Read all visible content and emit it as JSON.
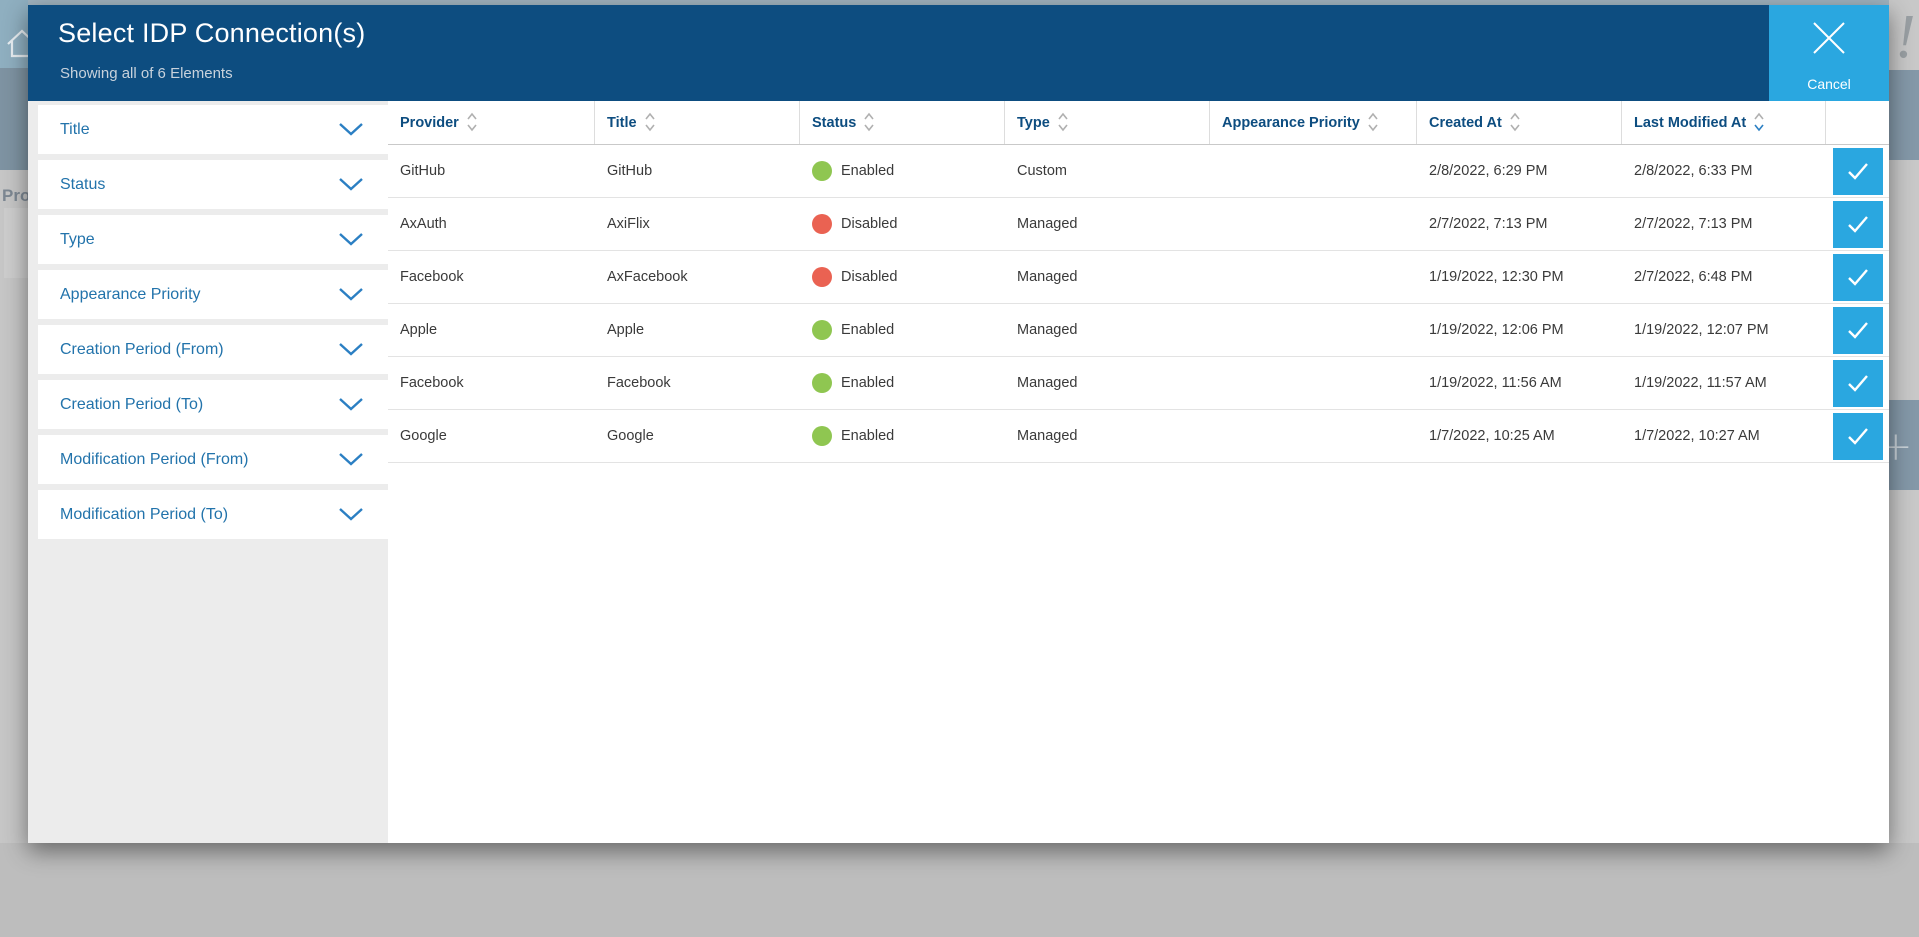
{
  "colors": {
    "header_blue": "#0d4d80",
    "accent_blue": "#2aa7e0",
    "link_blue": "#2273ab",
    "status_enabled": "#8fc651",
    "status_disabled": "#ea6252"
  },
  "modal": {
    "title": "Select IDP Connection(s)",
    "subtitle": "Showing all of 6 Elements",
    "cancel_label": "Cancel"
  },
  "filters": {
    "items": [
      {
        "slug": "title",
        "label": "Title"
      },
      {
        "slug": "status",
        "label": "Status"
      },
      {
        "slug": "type",
        "label": "Type"
      },
      {
        "slug": "appearance-priority",
        "label": "Appearance Priority"
      },
      {
        "slug": "creation-period-from",
        "label": "Creation Period (From)"
      },
      {
        "slug": "creation-period-to",
        "label": "Creation Period (To)"
      },
      {
        "slug": "modification-period-from",
        "label": "Modification Period (From)"
      },
      {
        "slug": "modification-period-to",
        "label": "Modification Period (To)"
      }
    ]
  },
  "table": {
    "columns": [
      {
        "key": "provider",
        "label": "Provider",
        "sortable": true
      },
      {
        "key": "title",
        "label": "Title",
        "sortable": true
      },
      {
        "key": "status",
        "label": "Status",
        "sortable": true
      },
      {
        "key": "type",
        "label": "Type",
        "sortable": true
      },
      {
        "key": "appearance_priority",
        "label": "Appearance Priority",
        "sortable": true
      },
      {
        "key": "created_at",
        "label": "Created At",
        "sortable": true
      },
      {
        "key": "last_modified_at",
        "label": "Last Modified At",
        "sortable": true
      },
      {
        "key": "select",
        "label": "",
        "sortable": false
      }
    ],
    "sort": {
      "column": "last_modified_at",
      "direction": "desc"
    },
    "rows": [
      {
        "provider": "GitHub",
        "title": "GitHub",
        "status": "Enabled",
        "type": "Custom",
        "appearance_priority": "",
        "created_at": "2/8/2022, 6:29 PM",
        "last_modified_at": "2/8/2022, 6:33 PM"
      },
      {
        "provider": "AxAuth",
        "title": "AxiFlix",
        "status": "Disabled",
        "type": "Managed",
        "appearance_priority": "",
        "created_at": "2/7/2022, 7:13 PM",
        "last_modified_at": "2/7/2022, 7:13 PM"
      },
      {
        "provider": "Facebook",
        "title": "AxFacebook",
        "status": "Disabled",
        "type": "Managed",
        "appearance_priority": "",
        "created_at": "1/19/2022, 12:30 PM",
        "last_modified_at": "2/7/2022, 6:48 PM"
      },
      {
        "provider": "Apple",
        "title": "Apple",
        "status": "Enabled",
        "type": "Managed",
        "appearance_priority": "",
        "created_at": "1/19/2022, 12:06 PM",
        "last_modified_at": "1/19/2022, 12:07 PM"
      },
      {
        "provider": "Facebook",
        "title": "Facebook",
        "status": "Enabled",
        "type": "Managed",
        "appearance_priority": "",
        "created_at": "1/19/2022, 11:56 AM",
        "last_modified_at": "1/19/2022, 11:57 AM"
      },
      {
        "provider": "Google",
        "title": "Google",
        "status": "Enabled",
        "type": "Managed",
        "appearance_priority": "",
        "created_at": "1/7/2022, 10:25 AM",
        "last_modified_at": "1/7/2022, 10:27 AM"
      }
    ]
  },
  "background": {
    "partial_text_left": "Pro",
    "exclamation": "!",
    "plus": "+"
  }
}
